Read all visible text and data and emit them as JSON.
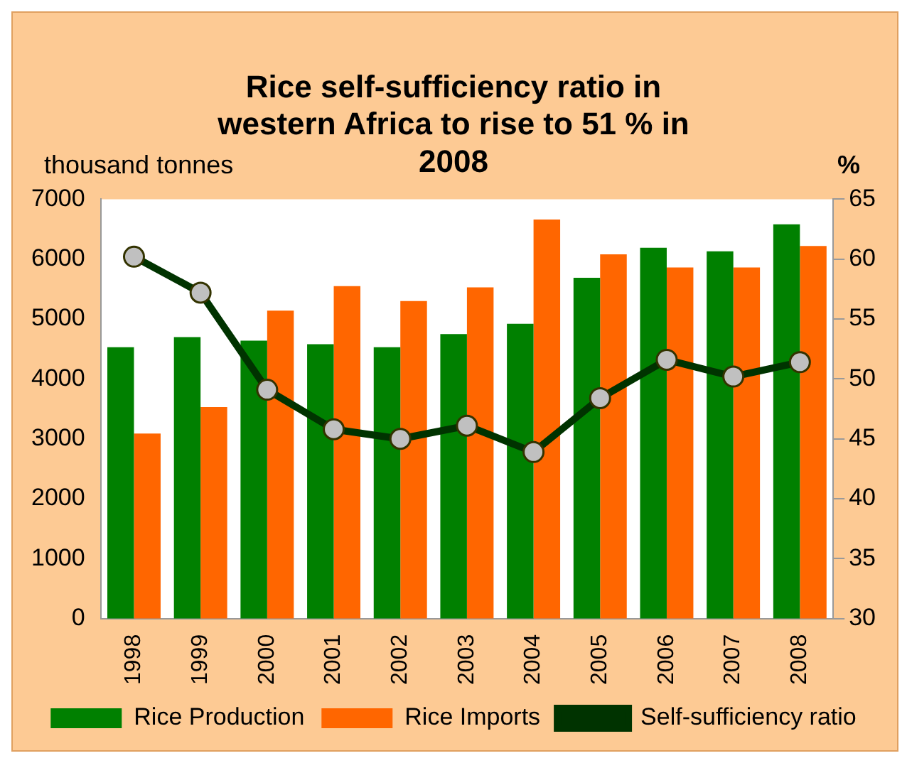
{
  "chart_data": {
    "type": "bar",
    "title": "Rice self-sufficiency ratio in western Africa to rise to 51 % in 2008",
    "ylabel": "thousand tonnes",
    "y2label": "%",
    "categories": [
      "1998",
      "1999",
      "2000",
      "2001",
      "2002",
      "2003",
      "2004",
      "2005",
      "2006",
      "2007",
      "2008"
    ],
    "series": [
      {
        "name": "Rice Production",
        "color": "#008000",
        "values": [
          4530,
          4700,
          4640,
          4580,
          4530,
          4750,
          4920,
          5690,
          6190,
          6130,
          6580
        ]
      },
      {
        "name": "Rice Imports",
        "color": "#ff6600",
        "values": [
          3090,
          3530,
          5140,
          5550,
          5300,
          5530,
          6660,
          6080,
          5860,
          5860,
          6220
        ]
      },
      {
        "name": "Self-sufficiency ratio",
        "type": "line",
        "axis": "y2",
        "color": "#003300",
        "marker": "circle",
        "values": [
          60.2,
          57.2,
          49.1,
          45.8,
          45.0,
          46.1,
          43.9,
          48.4,
          51.6,
          50.2,
          51.4
        ]
      }
    ],
    "ylim": [
      0,
      7000
    ],
    "yticks": [
      0,
      1000,
      2000,
      3000,
      4000,
      5000,
      6000,
      7000
    ],
    "y2lim": [
      30,
      65
    ],
    "y2ticks": [
      30,
      35,
      40,
      45,
      50,
      55,
      60,
      65
    ],
    "grid": false,
    "legend": "bottom"
  }
}
